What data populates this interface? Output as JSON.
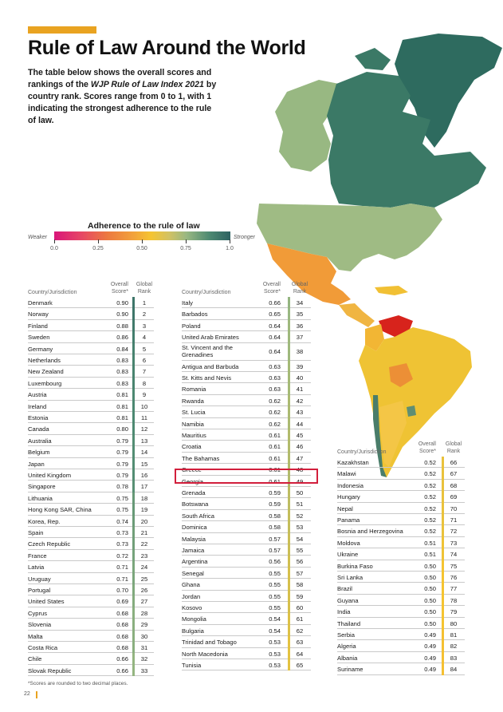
{
  "page": {
    "title": "Rule of Law Around the World",
    "intro_pre": "The table below shows the overall scores and rankings of the ",
    "intro_em": "WJP Rule of Law Index 2021",
    "intro_post": " by country rank. Scores range from 0 to 1, with 1 indicating the strongest adherence to the rule of law.",
    "footnote": "*Scores are rounded to two decimal places.",
    "page_number": "22"
  },
  "legend": {
    "title": "Adherence to the rule of law",
    "weaker": "Weaker",
    "stronger": "Stronger",
    "ticks": [
      "0.0",
      "0.25",
      "0.50",
      "0.75",
      "1.0"
    ]
  },
  "colors": {
    "accent": "#e9a321",
    "highlight": "#d21f3c",
    "strong": "#2d6161",
    "medium": "#f5c431",
    "weak": "#d9167a"
  },
  "table_headers": {
    "country": "Country/Jurisdiction",
    "score_line1": "Overall",
    "score_line2": "Score*",
    "rank_line1": "Global",
    "rank_line2": "Rank"
  },
  "table1": [
    [
      "Denmark",
      "0.90",
      "1"
    ],
    [
      "Norway",
      "0.90",
      "2"
    ],
    [
      "Finland",
      "0.88",
      "3"
    ],
    [
      "Sweden",
      "0.86",
      "4"
    ],
    [
      "Germany",
      "0.84",
      "5"
    ],
    [
      "Netherlands",
      "0.83",
      "6"
    ],
    [
      "New Zealand",
      "0.83",
      "7"
    ],
    [
      "Luxembourg",
      "0.83",
      "8"
    ],
    [
      "Austria",
      "0.81",
      "9"
    ],
    [
      "Ireland",
      "0.81",
      "10"
    ],
    [
      "Estonia",
      "0.81",
      "11"
    ],
    [
      "Canada",
      "0.80",
      "12"
    ],
    [
      "Australia",
      "0.79",
      "13"
    ],
    [
      "Belgium",
      "0.79",
      "14"
    ],
    [
      "Japan",
      "0.79",
      "15"
    ],
    [
      "United Kingdom",
      "0.79",
      "16"
    ],
    [
      "Singapore",
      "0.78",
      "17"
    ],
    [
      "Lithuania",
      "0.75",
      "18"
    ],
    [
      "Hong Kong SAR, China",
      "0.75",
      "19"
    ],
    [
      "Korea, Rep.",
      "0.74",
      "20"
    ],
    [
      "Spain",
      "0.73",
      "21"
    ],
    [
      "Czech Republic",
      "0.73",
      "22"
    ],
    [
      "France",
      "0.72",
      "23"
    ],
    [
      "Latvia",
      "0.71",
      "24"
    ],
    [
      "Uruguay",
      "0.71",
      "25"
    ],
    [
      "Portugal",
      "0.70",
      "26"
    ],
    [
      "United States",
      "0.69",
      "27"
    ],
    [
      "Cyprus",
      "0.68",
      "28"
    ],
    [
      "Slovenia",
      "0.68",
      "29"
    ],
    [
      "Malta",
      "0.68",
      "30"
    ],
    [
      "Costa Rica",
      "0.68",
      "31"
    ],
    [
      "Chile",
      "0.66",
      "32"
    ],
    [
      "Slovak Republic",
      "0.66",
      "33"
    ]
  ],
  "table2": [
    [
      "Italy",
      "0.66",
      "34"
    ],
    [
      "Barbados",
      "0.65",
      "35"
    ],
    [
      "Poland",
      "0.64",
      "36"
    ],
    [
      "United Arab Emirates",
      "0.64",
      "37"
    ],
    [
      "St. Vincent and the Grenadines",
      "0.64",
      "38"
    ],
    [
      "Antigua and Barbuda",
      "0.63",
      "39"
    ],
    [
      "St. Kitts and Nevis",
      "0.63",
      "40"
    ],
    [
      "Romania",
      "0.63",
      "41"
    ],
    [
      "Rwanda",
      "0.62",
      "42"
    ],
    [
      "St. Lucia",
      "0.62",
      "43"
    ],
    [
      "Namibia",
      "0.62",
      "44"
    ],
    [
      "Mauritius",
      "0.61",
      "45"
    ],
    [
      "Croatia",
      "0.61",
      "46"
    ],
    [
      "The Bahamas",
      "0.61",
      "47"
    ],
    [
      "Greece",
      "0.61",
      "48"
    ],
    [
      "Georgia",
      "0.61",
      "49"
    ],
    [
      "Grenada",
      "0.59",
      "50"
    ],
    [
      "Botswana",
      "0.59",
      "51"
    ],
    [
      "South Africa",
      "0.58",
      "52"
    ],
    [
      "Dominica",
      "0.58",
      "53"
    ],
    [
      "Malaysia",
      "0.57",
      "54"
    ],
    [
      "Jamaica",
      "0.57",
      "55"
    ],
    [
      "Argentina",
      "0.56",
      "56"
    ],
    [
      "Senegal",
      "0.55",
      "57"
    ],
    [
      "Ghana",
      "0.55",
      "58"
    ],
    [
      "Jordan",
      "0.55",
      "59"
    ],
    [
      "Kosovo",
      "0.55",
      "60"
    ],
    [
      "Mongolia",
      "0.54",
      "61"
    ],
    [
      "Bulgaria",
      "0.54",
      "62"
    ],
    [
      "Trinidad and Tobago",
      "0.53",
      "63"
    ],
    [
      "North Macedonia",
      "0.53",
      "64"
    ],
    [
      "Tunisia",
      "0.53",
      "65"
    ]
  ],
  "table3": [
    [
      "Kazakhstan",
      "0.52",
      "66"
    ],
    [
      "Malawi",
      "0.52",
      "67"
    ],
    [
      "Indonesia",
      "0.52",
      "68"
    ],
    [
      "Hungary",
      "0.52",
      "69"
    ],
    [
      "Nepal",
      "0.52",
      "70"
    ],
    [
      "Panama",
      "0.52",
      "71"
    ],
    [
      "Bosnia and Herzegovina",
      "0.52",
      "72"
    ],
    [
      "Moldova",
      "0.51",
      "73"
    ],
    [
      "Ukraine",
      "0.51",
      "74"
    ],
    [
      "Burkina Faso",
      "0.50",
      "75"
    ],
    [
      "Sri Lanka",
      "0.50",
      "76"
    ],
    [
      "Brazil",
      "0.50",
      "77"
    ],
    [
      "Guyana",
      "0.50",
      "78"
    ],
    [
      "India",
      "0.50",
      "79"
    ],
    [
      "Thailand",
      "0.50",
      "80"
    ],
    [
      "Serbia",
      "0.49",
      "81"
    ],
    [
      "Algeria",
      "0.49",
      "82"
    ],
    [
      "Albania",
      "0.49",
      "83"
    ],
    [
      "Suriname",
      "0.49",
      "84"
    ]
  ]
}
